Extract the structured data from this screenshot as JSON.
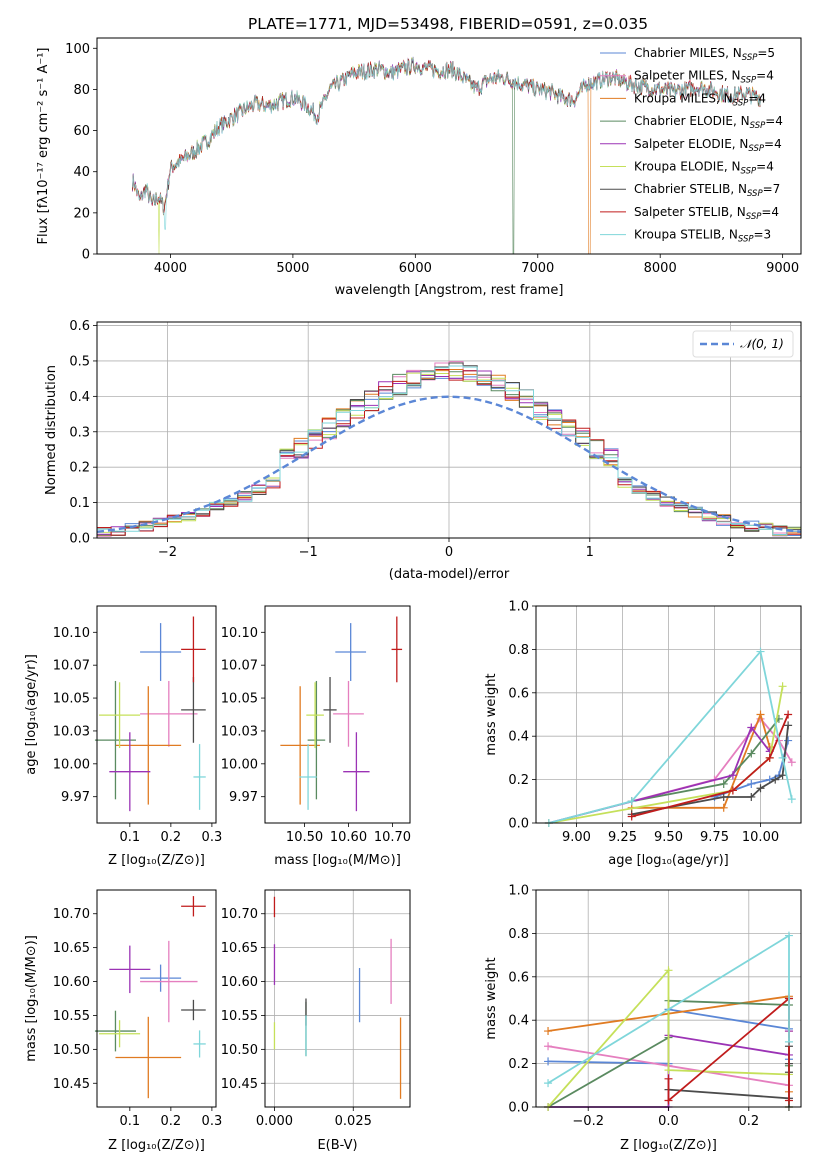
{
  "colors": {
    "chabrier_miles": "#5b87d6",
    "salpeter_miles": "#e57fbf",
    "kroupa_miles": "#e07b22",
    "chabrier_elodie": "#5a8a60",
    "salpeter_elodie": "#9b33b5",
    "kroupa_elodie": "#c5e05a",
    "chabrier_stelib": "#4b4b4b",
    "salpeter_stelib": "#c01c1c",
    "kroupa_stelib": "#7fd6da"
  },
  "chart_data": [
    {
      "id": "spectrum",
      "type": "line",
      "title": "PLATE=1771, MJD=53498, FIBERID=0591, z=0.035",
      "xlabel": "wavelength [Angstrom, rest frame]",
      "ylabel": "Flux [fλ10⁻¹⁷ erg cm⁻² s⁻¹ A⁻¹]",
      "xlim": [
        3400,
        9150
      ],
      "ylim": [
        0,
        105
      ],
      "xticks": [
        4000,
        5000,
        6000,
        7000,
        8000,
        9000
      ],
      "yticks": [
        0,
        20,
        40,
        60,
        80,
        100
      ],
      "continuum_x": [
        3700,
        3750,
        3800,
        3850,
        3900,
        3950,
        4000,
        4100,
        4200,
        4300,
        4400,
        4500,
        4600,
        4700,
        4800,
        4900,
        5000,
        5100,
        5200,
        5300,
        5400,
        5500,
        5600,
        5700,
        5800,
        5900,
        6000,
        6100,
        6200,
        6300,
        6400,
        6500,
        6600,
        6700,
        6800,
        6900,
        7000,
        7100,
        7200,
        7300,
        7400,
        7500,
        7600,
        7700,
        7800,
        7900,
        8000,
        8100,
        8200,
        8300,
        8400,
        8500,
        8600,
        8700,
        8800
      ],
      "continuum_y": [
        35,
        26,
        32,
        24,
        28,
        22,
        42,
        46,
        50,
        55,
        62,
        66,
        70,
        73,
        72,
        74,
        76,
        73,
        67,
        80,
        84,
        88,
        89,
        90,
        88,
        90,
        92,
        90,
        89,
        90,
        85,
        80,
        85,
        86,
        84,
        82,
        80,
        79,
        76,
        75,
        83,
        84,
        86,
        84,
        82,
        81,
        80,
        79,
        80,
        81,
        80,
        78,
        77,
        78,
        76
      ],
      "legend": [
        {
          "label": "Chabrier MILES, N",
          "sub": "SSP",
          "tail": "=5",
          "color": "#5b87d6"
        },
        {
          "label": "Salpeter MILES, N",
          "sub": "SSP",
          "tail": "=4",
          "color": "#e57fbf"
        },
        {
          "label": "Kroupa MILES, N",
          "sub": "SSP",
          "tail": "=4",
          "color": "#e07b22"
        },
        {
          "label": "Chabrier ELODIE, N",
          "sub": "SSP",
          "tail": "=4",
          "color": "#5a8a60"
        },
        {
          "label": "Salpeter ELODIE, N",
          "sub": "SSP",
          "tail": "=4",
          "color": "#9b33b5"
        },
        {
          "label": "Kroupa ELODIE, N",
          "sub": "SSP",
          "tail": "=4",
          "color": "#c5e05a"
        },
        {
          "label": "Chabrier STELIB, N",
          "sub": "SSP",
          "tail": "=7",
          "color": "#4b4b4b"
        },
        {
          "label": "Salpeter STELIB, N",
          "sub": "SSP",
          "tail": "=4",
          "color": "#c01c1c"
        },
        {
          "label": "Kroupa STELIB, N",
          "sub": "SSP",
          "tail": "=3",
          "color": "#7fd6da"
        }
      ]
    },
    {
      "id": "residuals",
      "type": "line",
      "xlabel": "(data-model)/error",
      "ylabel": "Normed distribution",
      "xlim": [
        -2.5,
        2.5
      ],
      "ylim": [
        0,
        0.61
      ],
      "xticks": [
        -2,
        -1,
        0,
        1,
        2
      ],
      "yticks": [
        0.0,
        0.1,
        0.2,
        0.3,
        0.4,
        0.5,
        0.6
      ],
      "grid": true,
      "bin_width": 0.1,
      "gaussian_label": "𝒩(0, 1)",
      "gaussian_color": "#5b87d6",
      "legend_position": "top-right"
    },
    {
      "id": "age-vs-Z",
      "type": "scatter",
      "xlabel": "Z [log₁₀(Z/Z⊙)]",
      "ylabel": "age  [log₁₀(age/yr)]",
      "xlim": [
        0.02,
        0.31
      ],
      "ylim": [
        9.955,
        10.12
      ],
      "xticks": [
        0.1,
        0.2,
        0.3
      ],
      "yticks": [
        9.975,
        10.0,
        10.025,
        10.05,
        10.075,
        10.1
      ],
      "points": [
        {
          "x": 0.175,
          "y": 10.085,
          "xerr": 0.05,
          "yerr": 0.022,
          "color": "#5b87d6"
        },
        {
          "x": 0.195,
          "y": 10.038,
          "xerr": 0.07,
          "yerr": 0.025,
          "color": "#e57fbf"
        },
        {
          "x": 0.145,
          "y": 10.014,
          "xerr": 0.08,
          "yerr": 0.045,
          "color": "#e07b22"
        },
        {
          "x": 0.065,
          "y": 10.018,
          "xerr": 0.05,
          "yerr": 0.045,
          "color": "#5a8a60"
        },
        {
          "x": 0.1,
          "y": 9.994,
          "xerr": 0.05,
          "yerr": 0.03,
          "color": "#9b33b5"
        },
        {
          "x": 0.075,
          "y": 10.037,
          "xerr": 0.05,
          "yerr": 0.025,
          "color": "#c5e05a"
        },
        {
          "x": 0.255,
          "y": 10.041,
          "xerr": 0.03,
          "yerr": 0.025,
          "color": "#4b4b4b"
        },
        {
          "x": 0.255,
          "y": 10.087,
          "xerr": 0.03,
          "yerr": 0.025,
          "color": "#c01c1c"
        },
        {
          "x": 0.27,
          "y": 9.99,
          "xerr": 0.015,
          "yerr": 0.025,
          "color": "#7fd6da"
        }
      ]
    },
    {
      "id": "age-vs-mass",
      "type": "scatter",
      "xlabel": "mass [log₁₀(M/M⊙)]",
      "ylabel": "",
      "xlim": [
        10.41,
        10.74
      ],
      "ylim": [
        9.955,
        10.12
      ],
      "xticks": [
        10.5,
        10.6,
        10.7
      ],
      "yticks": [
        9.975,
        10.0,
        10.025,
        10.05,
        10.075,
        10.1
      ],
      "points": [
        {
          "x": 10.605,
          "y": 10.085,
          "xerr": 0.035,
          "yerr": 0.022,
          "color": "#5b87d6"
        },
        {
          "x": 10.6,
          "y": 10.038,
          "xerr": 0.035,
          "yerr": 0.025,
          "color": "#e57fbf"
        },
        {
          "x": 10.49,
          "y": 10.014,
          "xerr": 0.045,
          "yerr": 0.045,
          "color": "#e07b22"
        },
        {
          "x": 10.527,
          "y": 10.018,
          "xerr": 0.02,
          "yerr": 0.045,
          "color": "#5a8a60"
        },
        {
          "x": 10.618,
          "y": 9.994,
          "xerr": 0.03,
          "yerr": 0.03,
          "color": "#9b33b5"
        },
        {
          "x": 10.524,
          "y": 10.037,
          "xerr": 0.02,
          "yerr": 0.025,
          "color": "#c5e05a"
        },
        {
          "x": 10.558,
          "y": 10.041,
          "xerr": 0.015,
          "yerr": 0.025,
          "color": "#4b4b4b"
        },
        {
          "x": 10.71,
          "y": 10.087,
          "xerr": 0.012,
          "yerr": 0.025,
          "color": "#c01c1c"
        },
        {
          "x": 10.508,
          "y": 9.99,
          "xerr": 0.02,
          "yerr": 0.025,
          "color": "#7fd6da"
        }
      ]
    },
    {
      "id": "weight-vs-age",
      "type": "line",
      "xlabel": "age  [log₁₀(age/yr)]",
      "ylabel": "mass weight",
      "xlim": [
        8.78,
        10.22
      ],
      "ylim": [
        0,
        1
      ],
      "xticks": [
        9.0,
        9.25,
        9.5,
        9.75,
        10.0
      ],
      "yticks": [
        0.0,
        0.2,
        0.4,
        0.6,
        0.8,
        1.0
      ],
      "grid": true,
      "series": [
        {
          "color": "#5b87d6",
          "x": [
            9.75,
            9.95,
            10.05,
            10.1,
            10.15
          ],
          "y": [
            0.12,
            0.18,
            0.2,
            0.22,
            0.38
          ]
        },
        {
          "color": "#e57fbf",
          "x": [
            9.3,
            9.75,
            10.0,
            10.1,
            10.17
          ],
          "y": [
            0.1,
            0.2,
            0.48,
            0.38,
            0.28
          ]
        },
        {
          "color": "#e07b22",
          "x": [
            9.3,
            9.8,
            10.0,
            10.05
          ],
          "y": [
            0.07,
            0.07,
            0.5,
            0.35
          ]
        },
        {
          "color": "#5a8a60",
          "x": [
            9.3,
            9.8,
            9.95,
            10.1
          ],
          "y": [
            0.1,
            0.18,
            0.32,
            0.48
          ]
        },
        {
          "color": "#9b33b5",
          "x": [
            8.85,
            9.85,
            9.95,
            10.05
          ],
          "y": [
            0.0,
            0.22,
            0.44,
            0.33
          ]
        },
        {
          "color": "#c5e05a",
          "x": [
            8.85,
            9.85,
            10.05,
            10.12
          ],
          "y": [
            0.0,
            0.15,
            0.3,
            0.63
          ]
        },
        {
          "color": "#4b4b4b",
          "x": [
            9.3,
            9.8,
            9.95,
            10.0,
            10.08,
            10.12,
            10.15
          ],
          "y": [
            0.04,
            0.12,
            0.12,
            0.16,
            0.2,
            0.22,
            0.45
          ]
        },
        {
          "color": "#c01c1c",
          "x": [
            9.3,
            9.85,
            10.05,
            10.15
          ],
          "y": [
            0.03,
            0.15,
            0.3,
            0.5
          ]
        },
        {
          "color": "#7fd6da",
          "x": [
            8.85,
            9.3,
            10.0,
            10.12,
            10.17
          ],
          "y": [
            0.0,
            0.1,
            0.79,
            0.3,
            0.11
          ]
        }
      ]
    },
    {
      "id": "mass-vs-Z",
      "type": "scatter",
      "xlabel": "Z [log₁₀(Z/Z⊙)]",
      "ylabel": "mass [log₁₀(M/M⊙)]",
      "xlim": [
        0.02,
        0.31
      ],
      "ylim": [
        10.415,
        10.735
      ],
      "xticks": [
        0.1,
        0.2,
        0.3
      ],
      "yticks": [
        10.45,
        10.5,
        10.55,
        10.6,
        10.65,
        10.7
      ],
      "points": [
        {
          "x": 0.175,
          "y": 10.605,
          "xerr": 0.05,
          "yerr": 0.02,
          "color": "#5b87d6"
        },
        {
          "x": 0.195,
          "y": 10.6,
          "xerr": 0.07,
          "yerr": 0.06,
          "color": "#e57fbf"
        },
        {
          "x": 0.145,
          "y": 10.488,
          "xerr": 0.08,
          "yerr": 0.06,
          "color": "#e07b22"
        },
        {
          "x": 0.065,
          "y": 10.527,
          "xerr": 0.05,
          "yerr": 0.03,
          "color": "#5a8a60"
        },
        {
          "x": 0.1,
          "y": 10.618,
          "xerr": 0.05,
          "yerr": 0.035,
          "color": "#9b33b5"
        },
        {
          "x": 0.075,
          "y": 10.523,
          "xerr": 0.05,
          "yerr": 0.02,
          "color": "#c5e05a"
        },
        {
          "x": 0.255,
          "y": 10.558,
          "xerr": 0.03,
          "yerr": 0.015,
          "color": "#4b4b4b"
        },
        {
          "x": 0.255,
          "y": 10.711,
          "xerr": 0.03,
          "yerr": 0.015,
          "color": "#c01c1c"
        },
        {
          "x": 0.27,
          "y": 10.508,
          "xerr": 0.015,
          "yerr": 0.02,
          "color": "#7fd6da"
        }
      ]
    },
    {
      "id": "mass-vs-EBV",
      "type": "scatter",
      "xlabel": "E(B-V)",
      "ylabel": "",
      "xlim": [
        -0.003,
        0.043
      ],
      "ylim": [
        10.415,
        10.735
      ],
      "xticks": [
        0.0,
        0.025
      ],
      "xticklabels": [
        "0.000",
        "0.025"
      ],
      "yticks": [
        10.45,
        10.5,
        10.55,
        10.6,
        10.65,
        10.7
      ],
      "points": [
        {
          "x": 0.027,
          "y": 10.58,
          "yerr": 0.04,
          "color": "#5b87d6"
        },
        {
          "x": 0.037,
          "y": 10.615,
          "yerr": 0.048,
          "color": "#e57fbf"
        },
        {
          "x": 0.04,
          "y": 10.487,
          "yerr": 0.06,
          "color": "#e07b22"
        },
        {
          "x": 0.01,
          "y": 10.53,
          "yerr": 0.04,
          "color": "#5a8a60"
        },
        {
          "x": 0.0,
          "y": 10.625,
          "yerr": 0.03,
          "color": "#9b33b5"
        },
        {
          "x": 0.0,
          "y": 10.52,
          "yerr": 0.02,
          "color": "#c5e05a"
        },
        {
          "x": 0.01,
          "y": 10.555,
          "yerr": 0.02,
          "color": "#4b4b4b"
        },
        {
          "x": 0.0,
          "y": 10.71,
          "yerr": 0.015,
          "color": "#c01c1c"
        },
        {
          "x": 0.01,
          "y": 10.52,
          "yerr": 0.03,
          "color": "#7fd6da"
        }
      ]
    },
    {
      "id": "weight-vs-Z",
      "type": "line",
      "xlabel": "Z [log₁₀(Z/Z⊙)]",
      "ylabel": "mass weight",
      "xlim": [
        -0.33,
        0.33
      ],
      "ylim": [
        0,
        1
      ],
      "xticks": [
        -0.2,
        0.0,
        0.2
      ],
      "xticklabels": [
        "−0.2",
        "0.0",
        "0.2"
      ],
      "yticks": [
        0.0,
        0.2,
        0.4,
        0.6,
        0.8,
        1.0
      ],
      "grid": true,
      "series": [
        {
          "color": "#5b87d6",
          "x": [
            -0.3,
            0.0,
            0.0,
            0.3,
            0.3,
            0.3
          ],
          "y": [
            0.21,
            0.2,
            0.45,
            0.36,
            0.22,
            0.04
          ]
        },
        {
          "color": "#e57fbf",
          "x": [
            -0.3,
            0.0,
            0.3,
            0.3
          ],
          "y": [
            0.28,
            0.19,
            0.1,
            0.35
          ]
        },
        {
          "color": "#e07b22",
          "x": [
            -0.3,
            0.3,
            0.3,
            0.3
          ],
          "y": [
            0.35,
            0.51,
            0.35,
            0.07
          ]
        },
        {
          "color": "#5a8a60",
          "x": [
            -0.3,
            0.0,
            0.0,
            0.3,
            0.3
          ],
          "y": [
            0.0,
            0.32,
            0.49,
            0.47,
            0.19
          ]
        },
        {
          "color": "#9b33b5",
          "x": [
            -0.3,
            0.0,
            0.0,
            0.3,
            0.3
          ],
          "y": [
            0.0,
            0.0,
            0.33,
            0.24,
            0.35
          ]
        },
        {
          "color": "#c5e05a",
          "x": [
            -0.3,
            0.0,
            0.0,
            0.3,
            0.3
          ],
          "y": [
            0.0,
            0.63,
            0.17,
            0.15,
            0.0
          ]
        },
        {
          "color": "#4b4b4b",
          "x": [
            0.0,
            0.3,
            0.3,
            0.3,
            0.3,
            0.3,
            0.3
          ],
          "y": [
            0.08,
            0.04,
            0.0,
            0.16,
            0.2,
            0.28,
            0.5
          ]
        },
        {
          "color": "#c01c1c",
          "x": [
            0.0,
            0.0,
            0.3,
            0.3
          ],
          "y": [
            0.13,
            0.03,
            0.5,
            0.03
          ]
        },
        {
          "color": "#7fd6da",
          "x": [
            -0.3,
            0.3,
            0.3
          ],
          "y": [
            0.11,
            0.79,
            0.3
          ]
        }
      ]
    }
  ]
}
